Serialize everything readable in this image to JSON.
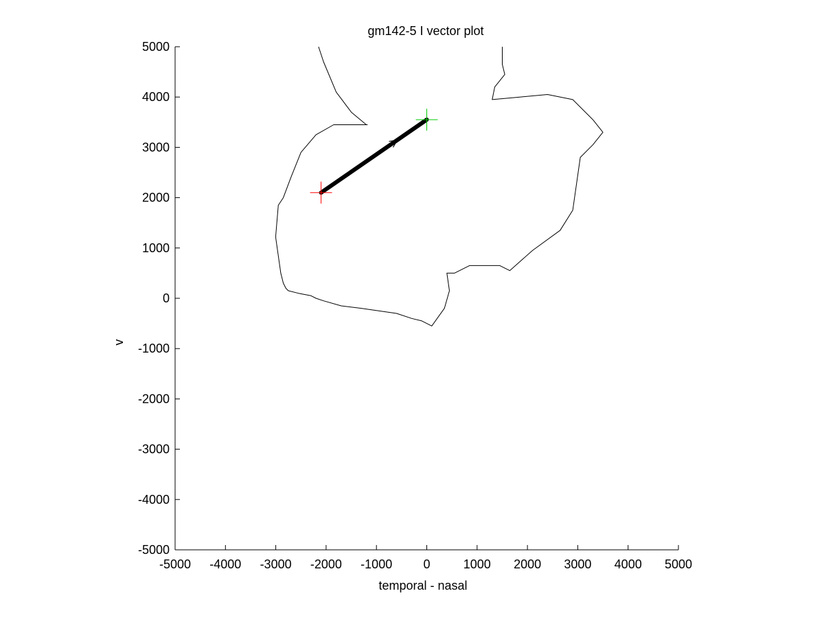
{
  "chart_data": {
    "type": "line",
    "title": "gm142-5 I vector plot",
    "xlabel": "temporal - nasal",
    "ylabel": "v",
    "xlim": [
      -5000,
      5000
    ],
    "ylim": [
      -5000,
      5000
    ],
    "xticks": [
      -5000,
      -4000,
      -3000,
      -2000,
      -1000,
      0,
      1000,
      2000,
      3000,
      4000,
      5000
    ],
    "yticks": [
      -5000,
      -4000,
      -3000,
      -2000,
      -1000,
      0,
      1000,
      2000,
      3000,
      4000,
      5000
    ],
    "grid": false,
    "axis_box": "left-bottom only",
    "series": [
      {
        "role": "field-outline",
        "color": "#000000",
        "x": [
          -2150,
          -2050,
          -1800,
          -1500,
          -1200,
          -1180,
          -1500,
          -1850,
          -2200,
          -2500,
          -2700,
          -2850,
          -2950,
          -3000,
          -3000,
          -2900,
          -2850,
          -2800,
          -2750,
          -2550,
          -2300,
          -2200,
          -2050,
          -1700,
          -1300,
          -600,
          -300,
          -100,
          100,
          350,
          450,
          400,
          550,
          850,
          1450,
          1650,
          2100,
          2650,
          2900,
          3050,
          3300,
          3500,
          3300,
          2900,
          2400,
          1850,
          1300,
          1350,
          1550,
          1500,
          1500
        ],
        "y": [
          5000,
          4700,
          4100,
          3700,
          3450,
          3450,
          3450,
          3450,
          3250,
          2900,
          2400,
          2000,
          1850,
          1250,
          1200,
          500,
          300,
          200,
          150,
          100,
          50,
          0,
          -50,
          -150,
          -200,
          -300,
          -400,
          -450,
          -550,
          -200,
          150,
          500,
          500,
          650,
          650,
          550,
          950,
          1350,
          1750,
          2800,
          3050,
          3300,
          3550,
          3950,
          4050,
          4000,
          3950,
          4200,
          4450,
          4650,
          5000
        ]
      },
      {
        "role": "vector",
        "color": "#000000",
        "x": [
          -2100,
          0
        ],
        "y": [
          2100,
          3550
        ]
      }
    ],
    "markers": [
      {
        "role": "start",
        "shape": "plus",
        "color": "#ff0000",
        "x": -2100,
        "y": 2100
      },
      {
        "role": "end",
        "shape": "plus",
        "color": "#00cc00",
        "x": 0,
        "y": 3550
      }
    ]
  }
}
